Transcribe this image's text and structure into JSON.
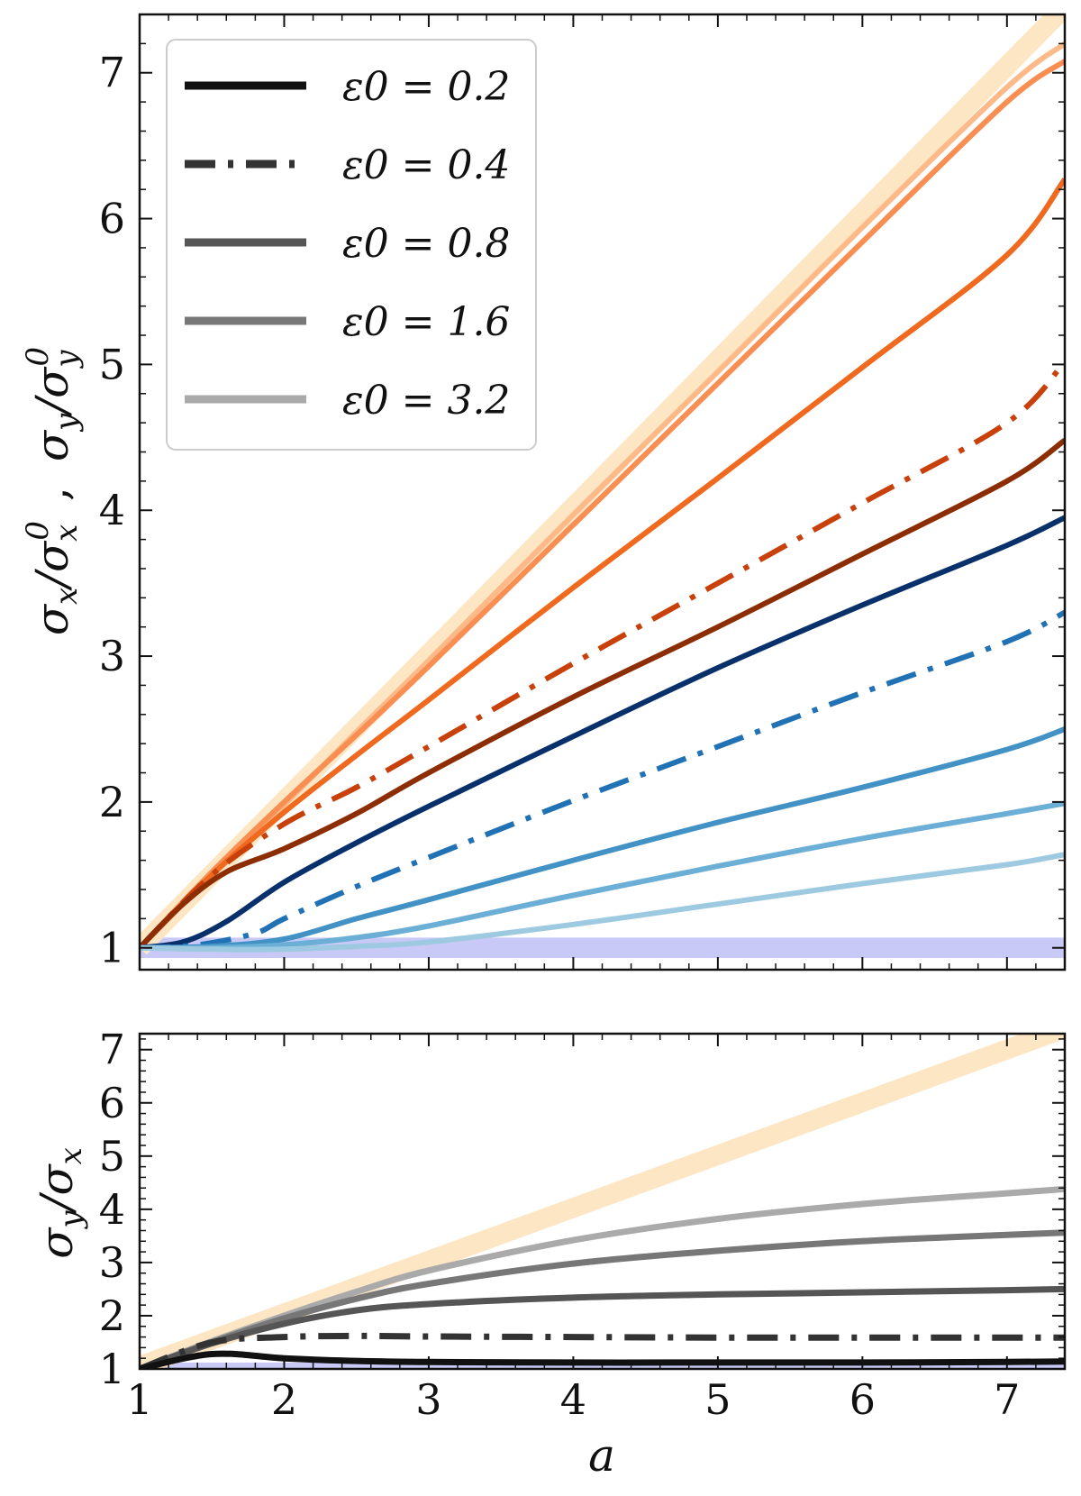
{
  "figure": {
    "x_label": "a",
    "top_ylabel": "σx/σx0 , σy/σy0",
    "bottom_ylabel": "σy/σx"
  },
  "chart_data": [
    {
      "type": "line",
      "panel": "top",
      "title": "",
      "xlabel": "a",
      "ylabel": "σx/σx0 , σy/σy0",
      "xlim": [
        1,
        7.4
      ],
      "ylim": [
        0.85,
        7.4
      ],
      "x_ticks": [
        1,
        2,
        3,
        4,
        5,
        6,
        7
      ],
      "y_ticks": [
        1,
        2,
        3,
        4,
        5,
        6,
        7
      ],
      "legend": {
        "placement": "top-left",
        "entries": [
          {
            "label": "ε0 = 0.2",
            "style": "solid",
            "color": "#111111"
          },
          {
            "label": "ε0 = 0.4",
            "style": "dashdot",
            "color": "#333333"
          },
          {
            "label": "ε0 = 0.8",
            "style": "solid",
            "color": "#555555"
          },
          {
            "label": "ε0 = 1.6",
            "style": "solid",
            "color": "#777777"
          },
          {
            "label": "ε0 = 3.2",
            "style": "solid",
            "color": "#aaaaaa"
          }
        ]
      },
      "bands": [
        {
          "name": "reference band σ = σ0",
          "y_range": [
            0.93,
            1.07
          ],
          "color": "#c9c9f8"
        }
      ],
      "series": [
        {
          "name": "σy/σy0 reference (σy ∝ a)",
          "color": "#fde6c4",
          "width": 22,
          "style": "solid",
          "x": [
            1,
            7.4
          ],
          "y": [
            1.0,
            7.45
          ]
        },
        {
          "name": "σy/σy0 ε0=3.2",
          "color": "#fdb987",
          "width": 6,
          "style": "solid",
          "x": [
            1,
            1.5,
            2,
            2.5,
            3,
            4,
            5,
            6,
            7,
            7.4
          ],
          "y": [
            1.0,
            1.5,
            1.98,
            2.48,
            2.97,
            3.97,
            4.95,
            5.94,
            6.9,
            7.2
          ]
        },
        {
          "name": "σy/σy0 ε0=1.6",
          "color": "#f98e52",
          "width": 6,
          "style": "solid",
          "x": [
            1,
            1.5,
            2,
            2.5,
            3,
            4,
            5,
            6,
            7,
            7.4
          ],
          "y": [
            1.0,
            1.52,
            2.0,
            2.46,
            2.93,
            3.9,
            4.87,
            5.84,
            6.8,
            7.08
          ]
        },
        {
          "name": "σy/σy0 ε0=0.8",
          "color": "#ef6a1e",
          "width": 6,
          "style": "solid",
          "x": [
            1,
            1.5,
            2,
            2.5,
            3,
            4,
            5,
            6,
            7,
            7.4
          ],
          "y": [
            1.0,
            1.5,
            1.93,
            2.32,
            2.7,
            3.47,
            4.22,
            4.98,
            5.75,
            6.27
          ]
        },
        {
          "name": "σy/σy0 ε0=0.4",
          "color": "#c8410b",
          "width": 6,
          "style": "dashdot",
          "x": [
            1,
            1.5,
            2,
            2.5,
            3,
            4,
            5,
            6,
            7,
            7.4
          ],
          "y": [
            1.0,
            1.5,
            1.85,
            2.1,
            2.38,
            2.95,
            3.5,
            4.05,
            4.6,
            5.02
          ]
        },
        {
          "name": "σy/σy0 ε0=0.2",
          "color": "#8c2d04",
          "width": 6,
          "style": "solid",
          "x": [
            1,
            1.3,
            1.6,
            2,
            2.5,
            3,
            4,
            5,
            6,
            7,
            7.4
          ],
          "y": [
            1.0,
            1.3,
            1.52,
            1.68,
            1.92,
            2.2,
            2.72,
            3.2,
            3.7,
            4.2,
            4.48
          ]
        },
        {
          "name": "σx/σx0 ε0=0.2",
          "color": "#08306b",
          "width": 6,
          "style": "solid",
          "x": [
            1,
            1.3,
            1.6,
            2,
            2.5,
            3,
            4,
            5,
            6,
            7,
            7.4
          ],
          "y": [
            1.0,
            1.04,
            1.18,
            1.45,
            1.72,
            1.97,
            2.45,
            2.92,
            3.35,
            3.76,
            3.95
          ]
        },
        {
          "name": "σx/σx0 ε0=0.4",
          "color": "#2171b5",
          "width": 6,
          "style": "dashdot",
          "x": [
            1,
            1.4,
            1.8,
            2,
            2.5,
            3,
            4,
            5,
            6,
            7,
            7.4
          ],
          "y": [
            1.0,
            1.02,
            1.1,
            1.2,
            1.42,
            1.62,
            2.01,
            2.38,
            2.75,
            3.1,
            3.3
          ]
        },
        {
          "name": "σx/σx0 ε0=0.8",
          "color": "#4292c6",
          "width": 6,
          "style": "solid",
          "x": [
            1,
            1.5,
            2,
            2.5,
            3,
            4,
            5,
            6,
            7,
            7.4
          ],
          "y": [
            1.0,
            1.01,
            1.06,
            1.2,
            1.33,
            1.6,
            1.86,
            2.1,
            2.36,
            2.5
          ]
        },
        {
          "name": "σx/σx0 ε0=1.6",
          "color": "#6baed6",
          "width": 6,
          "style": "solid",
          "x": [
            1,
            1.5,
            2,
            2.5,
            3,
            4,
            5,
            6,
            7,
            7.4
          ],
          "y": [
            1.0,
            1.0,
            1.02,
            1.07,
            1.15,
            1.36,
            1.56,
            1.75,
            1.92,
            1.99
          ]
        },
        {
          "name": "σx/σx0 ε0=3.2",
          "color": "#9ecae1",
          "width": 6,
          "style": "solid",
          "x": [
            1,
            1.5,
            2,
            2.5,
            3,
            4,
            5,
            6,
            7,
            7.4
          ],
          "y": [
            1.0,
            0.99,
            0.99,
            1.01,
            1.04,
            1.16,
            1.3,
            1.44,
            1.57,
            1.64
          ]
        }
      ]
    },
    {
      "type": "line",
      "panel": "bottom",
      "title": "",
      "xlabel": "a",
      "ylabel": "σy/σx",
      "xlim": [
        1,
        7.4
      ],
      "ylim": [
        1,
        7.3
      ],
      "x_ticks": [
        1,
        2,
        3,
        4,
        5,
        6,
        7
      ],
      "y_ticks": [
        1,
        2,
        3,
        4,
        5,
        6,
        7
      ],
      "bands": [
        {
          "name": "reference band σy/σx = 1",
          "y_range": [
            0.9,
            1.12
          ],
          "color": "#c9c9f8"
        }
      ],
      "series": [
        {
          "name": "σy/σx reference (σy/σx ∝ a)",
          "color": "#fde6c4",
          "width": 22,
          "style": "solid",
          "x": [
            1,
            7.4
          ],
          "y": [
            1.05,
            7.4
          ]
        },
        {
          "name": "σy/σx ε0=3.2",
          "color": "#aaaaaa",
          "width": 7,
          "style": "solid",
          "x": [
            1,
            1.5,
            2,
            2.5,
            3,
            4,
            5,
            6,
            7,
            7.4
          ],
          "y": [
            1.0,
            1.52,
            2.0,
            2.45,
            2.85,
            3.42,
            3.82,
            4.1,
            4.3,
            4.38
          ]
        },
        {
          "name": "σy/σx ε0=1.6",
          "color": "#777777",
          "width": 7,
          "style": "solid",
          "x": [
            1,
            1.5,
            2,
            2.5,
            3,
            4,
            5,
            6,
            7,
            7.4
          ],
          "y": [
            1.0,
            1.5,
            1.95,
            2.32,
            2.6,
            2.98,
            3.22,
            3.4,
            3.52,
            3.56
          ]
        },
        {
          "name": "σy/σx ε0=0.8",
          "color": "#555555",
          "width": 7,
          "style": "solid",
          "x": [
            1,
            1.5,
            2,
            2.5,
            3,
            4,
            5,
            6,
            7,
            7.4
          ],
          "y": [
            1.0,
            1.48,
            1.85,
            2.1,
            2.22,
            2.34,
            2.4,
            2.44,
            2.48,
            2.5
          ]
        },
        {
          "name": "σy/σx ε0=0.4",
          "color": "#333333",
          "width": 7,
          "style": "dashdot",
          "x": [
            1,
            1.5,
            2,
            2.5,
            3,
            4,
            5,
            6,
            7,
            7.4
          ],
          "y": [
            1.0,
            1.5,
            1.6,
            1.62,
            1.61,
            1.6,
            1.59,
            1.59,
            1.59,
            1.59
          ]
        },
        {
          "name": "σy/σx ε0=0.2",
          "color": "#111111",
          "width": 7,
          "style": "solid",
          "x": [
            1,
            1.5,
            2,
            2.5,
            3,
            4,
            5,
            6,
            7,
            7.4
          ],
          "y": [
            1.0,
            1.28,
            1.2,
            1.15,
            1.13,
            1.12,
            1.12,
            1.12,
            1.13,
            1.14
          ]
        }
      ]
    }
  ]
}
